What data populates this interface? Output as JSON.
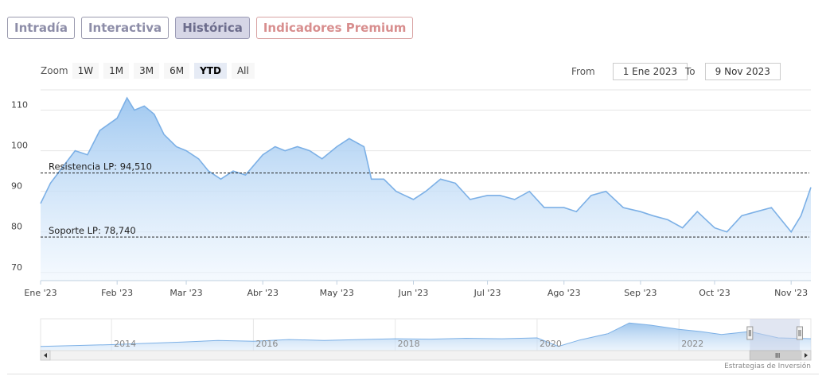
{
  "tabs": [
    "Intradía",
    "Interactiva",
    "Histórica",
    "Indicadores Premium"
  ],
  "zoom": {
    "label": "Zoom",
    "buttons": [
      "1W",
      "1M",
      "3M",
      "6M",
      "YTD",
      "All"
    ],
    "selected": "YTD"
  },
  "range": {
    "from_label": "From",
    "from_value": "1 Ene 2023",
    "to_label": "To",
    "to_value": "9 Nov 2023"
  },
  "credit": "Estrategias de Inversión",
  "colors": {
    "line": "#7cb0e6",
    "fill_top": "#9cc6f0",
    "fill_bottom": "#eef6fe",
    "navigator_mask": "#c8d2e8"
  },
  "chart_data": {
    "type": "area",
    "ylim": [
      68,
      115
    ],
    "y_ticks": [
      70,
      80,
      90,
      100,
      110
    ],
    "x_labels": [
      "Ene '23",
      "Feb '23",
      "Mar '23",
      "Abr '23",
      "May '23",
      "Jun '23",
      "Jul '23",
      "Ago '23",
      "Sep '23",
      "Oct '23",
      "Nov '23"
    ],
    "x_label_dates": [
      "2023-01-01",
      "2023-02-01",
      "2023-03-01",
      "2023-04-01",
      "2023-05-01",
      "2023-06-01",
      "2023-07-01",
      "2023-08-01",
      "2023-09-01",
      "2023-10-01",
      "2023-11-01"
    ],
    "xlim": [
      "2023-01-01",
      "2023-11-09"
    ],
    "grid": true,
    "series": [
      {
        "x": [
          "2023-01-01",
          "2023-01-05",
          "2023-01-10",
          "2023-01-15",
          "2023-01-20",
          "2023-01-25",
          "2023-02-01",
          "2023-02-05",
          "2023-02-08",
          "2023-02-12",
          "2023-02-16",
          "2023-02-20",
          "2023-02-25",
          "2023-03-01",
          "2023-03-06",
          "2023-03-10",
          "2023-03-15",
          "2023-03-20",
          "2023-03-25",
          "2023-04-01",
          "2023-04-06",
          "2023-04-10",
          "2023-04-15",
          "2023-04-20",
          "2023-04-25",
          "2023-05-01",
          "2023-05-06",
          "2023-05-12",
          "2023-05-15",
          "2023-05-20",
          "2023-05-25",
          "2023-06-01",
          "2023-06-06",
          "2023-06-12",
          "2023-06-18",
          "2023-06-24",
          "2023-07-01",
          "2023-07-06",
          "2023-07-12",
          "2023-07-18",
          "2023-07-24",
          "2023-08-01",
          "2023-08-06",
          "2023-08-12",
          "2023-08-18",
          "2023-08-25",
          "2023-09-01",
          "2023-09-06",
          "2023-09-12",
          "2023-09-18",
          "2023-09-24",
          "2023-10-01",
          "2023-10-06",
          "2023-10-12",
          "2023-10-18",
          "2023-10-24",
          "2023-11-01",
          "2023-11-05",
          "2023-11-09"
        ],
        "y": [
          87,
          92,
          96,
          100,
          99,
          105,
          108,
          113,
          110,
          111,
          109,
          104,
          101,
          100,
          98,
          95,
          93,
          95,
          94,
          99,
          101,
          100,
          101,
          100,
          98,
          101,
          103,
          101,
          93,
          93,
          90,
          88,
          90,
          93,
          92,
          88,
          89,
          89,
          88,
          90,
          86,
          86,
          85,
          89,
          90,
          86,
          85,
          84,
          83,
          81,
          85,
          81,
          80,
          84,
          85,
          86,
          80,
          84,
          91
        ]
      }
    ],
    "annotations": [
      {
        "label": "Resistencia LP: 94,510",
        "y": 94.51
      },
      {
        "label": "Soporte LP: 78,740",
        "y": 78.74
      }
    ],
    "navigator": {
      "x_labels": [
        "2014",
        "2016",
        "2018",
        "2020",
        "2022"
      ],
      "x_label_years": [
        2014,
        2016,
        2018,
        2020,
        2022
      ],
      "xlim_years": [
        2013.0,
        2023.86
      ],
      "selection_years": [
        2023.0,
        2023.86
      ],
      "x_years": [
        2013.0,
        2013.5,
        2014.0,
        2014.5,
        2015.0,
        2015.5,
        2016.0,
        2016.5,
        2017.0,
        2017.5,
        2018.0,
        2018.5,
        2019.0,
        2019.5,
        2020.0,
        2020.3,
        2020.6,
        2021.0,
        2021.3,
        2021.6,
        2022.0,
        2022.3,
        2022.6,
        2023.0,
        2023.4,
        2023.86
      ],
      "y": [
        70,
        72,
        74,
        77,
        80,
        84,
        82,
        86,
        84,
        86,
        88,
        87,
        89,
        88,
        90,
        70,
        85,
        100,
        125,
        120,
        110,
        105,
        98,
        105,
        90,
        88
      ],
      "ylim": [
        60,
        135
      ]
    }
  }
}
